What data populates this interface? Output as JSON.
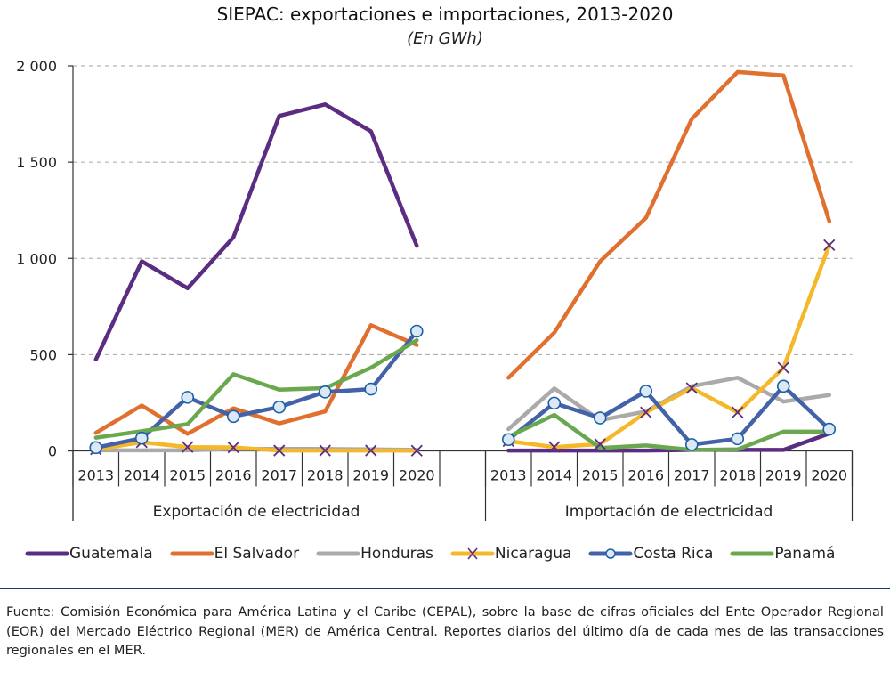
{
  "header": {
    "title": "SIEPAC: exportaciones e importaciones, 2013-2020",
    "subtitle": "(En GWh)"
  },
  "chart_data": {
    "type": "line",
    "title": "SIEPAC: exportaciones e importaciones, 2013-2020",
    "subtitle": "(En GWh)",
    "xlabel": "",
    "ylabel": "",
    "ylim": [
      0,
      2000
    ],
    "yticks": [
      0,
      500,
      1000,
      1500,
      2000
    ],
    "ytick_labels": [
      "0",
      "500",
      "1 000",
      "1 500",
      "2 000"
    ],
    "grid": true,
    "legend_position": "bottom",
    "categories": [
      "2013",
      "2014",
      "2015",
      "2016",
      "2017",
      "2018",
      "2019",
      "2020"
    ],
    "groups": [
      {
        "key": "export",
        "label": "Exportación de electricidad"
      },
      {
        "key": "import",
        "label": "Importación de electricidad"
      }
    ],
    "series": [
      {
        "name": "Guatemala",
        "color": "#5b2d82",
        "marker": "none",
        "export": [
          475,
          985,
          845,
          1110,
          1740,
          1800,
          1660,
          1065
        ],
        "import": [
          2,
          2,
          2,
          2,
          5,
          5,
          5,
          90
        ]
      },
      {
        "name": "El Salvador",
        "color": "#e07030",
        "marker": "none",
        "export": [
          94,
          236,
          89,
          221,
          143,
          205,
          653,
          550
        ],
        "import": [
          380,
          614,
          985,
          1210,
          1725,
          1968,
          1950,
          1193
        ]
      },
      {
        "name": "Honduras",
        "color": "#aaaaaa",
        "marker": "none",
        "export": [
          3,
          3,
          3,
          10,
          10,
          10,
          8,
          5
        ],
        "import": [
          113,
          324,
          159,
          205,
          336,
          380,
          256,
          290
        ]
      },
      {
        "name": "Nicaragua",
        "color": "#f5b82a",
        "marker": "x",
        "export": [
          8,
          45,
          20,
          18,
          2,
          2,
          2,
          1
        ],
        "import": [
          51,
          20,
          35,
          200,
          326,
          200,
          432,
          1069
        ]
      },
      {
        "name": "Costa Rica",
        "color": "#4462a8",
        "marker": "circle",
        "export": [
          17,
          66,
          278,
          179,
          228,
          306,
          321,
          622
        ],
        "import": [
          59,
          248,
          171,
          310,
          33,
          63,
          336,
          113
        ]
      },
      {
        "name": "Panamá",
        "color": "#6aa84f",
        "marker": "none",
        "export": [
          69,
          102,
          139,
          398,
          318,
          326,
          432,
          575
        ],
        "import": [
          74,
          187,
          15,
          28,
          5,
          8,
          100,
          100
        ]
      }
    ],
    "marker_colors": {
      "x": "#5b2d82",
      "circle_fill": "#dce9f5",
      "circle_stroke": "#1a5fa8"
    }
  },
  "legend": [
    {
      "label": "Guatemala"
    },
    {
      "label": "El Salvador"
    },
    {
      "label": "Honduras"
    },
    {
      "label": "Nicaragua"
    },
    {
      "label": "Costa Rica"
    },
    {
      "label": "Panamá"
    }
  ],
  "footer": {
    "source": "Fuente: Comisión Económica para América Latina y el Caribe (CEPAL), sobre la base de cifras oficiales del Ente Operador Regional (EOR) del Mercado Eléctrico Regional (MER) de América Central. Reportes diarios del último día de cada mes de las transacciones regionales en el MER."
  },
  "colors": {
    "divider": "#1f3b7a"
  }
}
